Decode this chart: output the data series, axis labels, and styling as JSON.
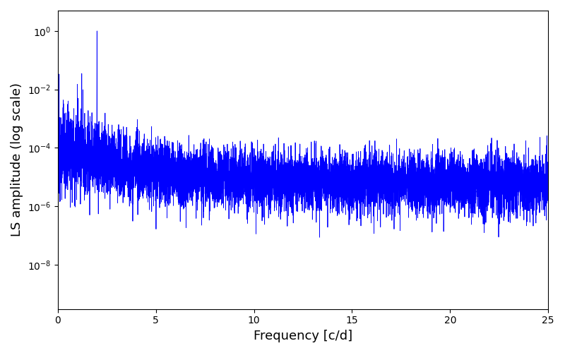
{
  "xlabel": "Frequency [c/d]",
  "ylabel": "LS amplitude (log scale)",
  "xlim": [
    0,
    25
  ],
  "line_color": "#0000ff",
  "line_width": 0.6,
  "background_color": "#ffffff",
  "figsize": [
    8.0,
    5.0
  ],
  "dpi": 100,
  "seed": 12345,
  "n_points": 8000,
  "freq_max": 25.0,
  "peak_freq": 2.0,
  "peak_amplitude": 1.0,
  "secondary_peak_freq": 1.0,
  "secondary_peak_amp": 0.015,
  "noise_sigma_low": 1.8,
  "noise_sigma_high": 1.2,
  "base_low_freq": 0.0001,
  "base_high_freq": 5e-06,
  "transition_freq": 4.0,
  "ylim_bottom": 3e-10,
  "ylim_top": 5.0
}
